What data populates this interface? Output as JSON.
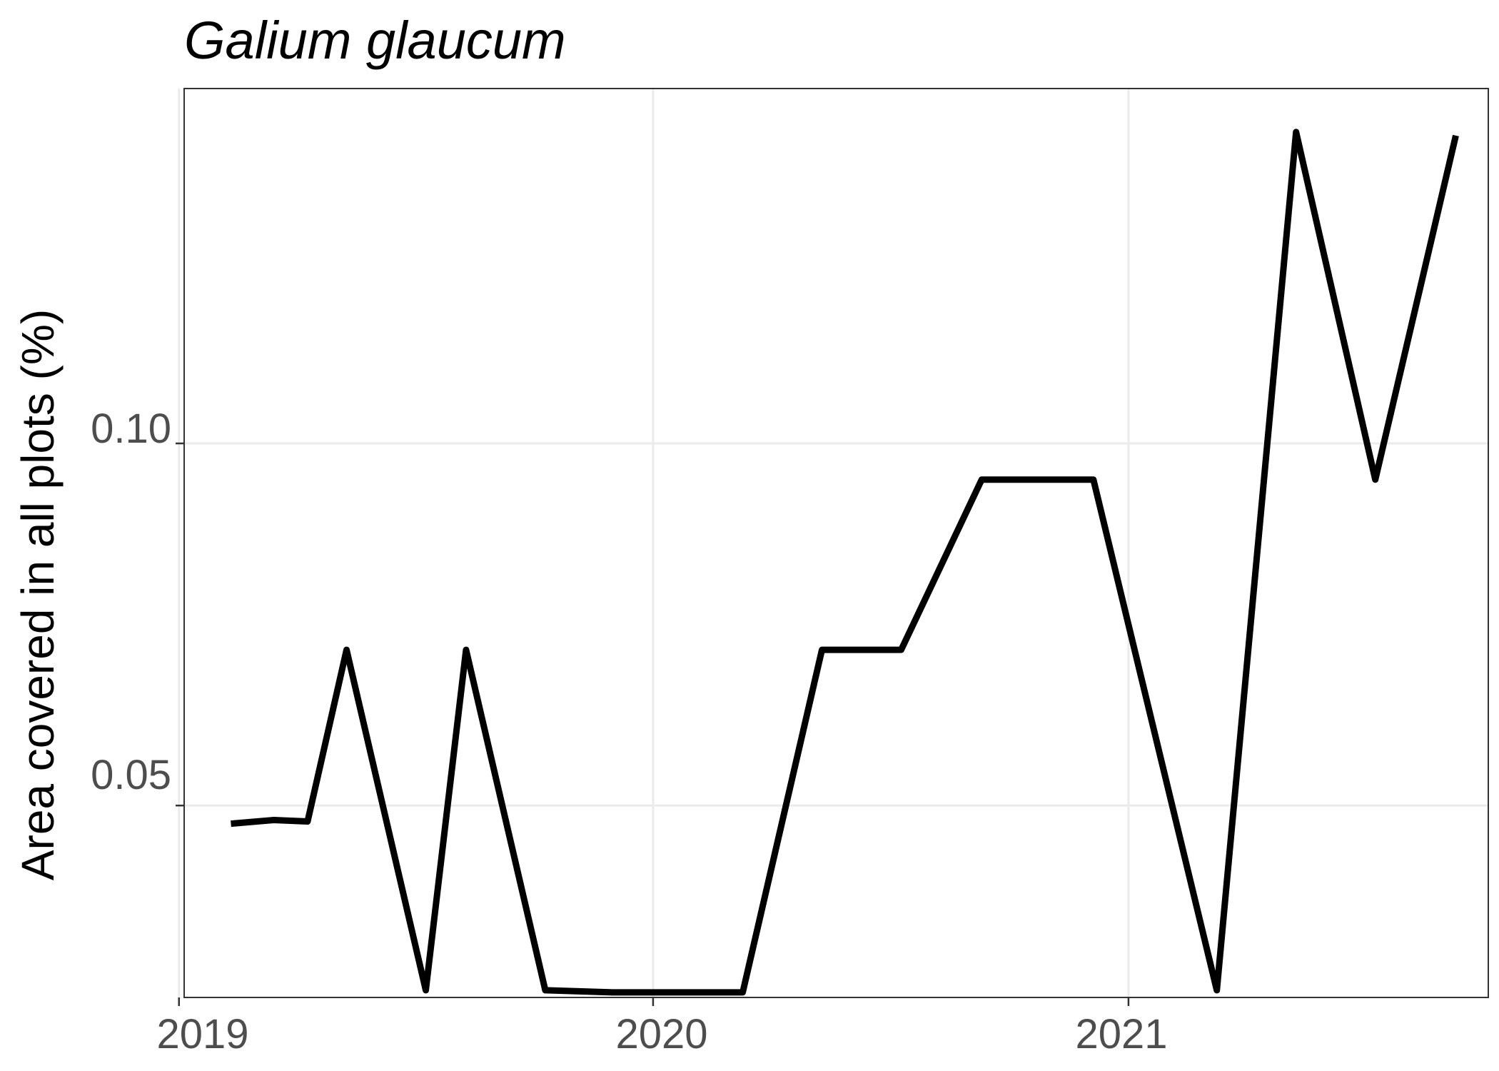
{
  "chart_data": {
    "type": "line",
    "title": "Galium glaucum",
    "xlabel": "",
    "ylabel": "Area covered in all plots (%)",
    "x_ticks": [
      "2019",
      "2020",
      "2021"
    ],
    "y_ticks": [
      "0.05",
      "0.10"
    ],
    "xlim": [
      "2019-01-05",
      "2021-10-05"
    ],
    "ylim": [
      0.0235,
      0.149
    ],
    "grid": true,
    "legend": "none",
    "series": [
      {
        "color": "#000000",
        "points": [
          {
            "x": "2019-02-10",
            "y": 0.0475
          },
          {
            "x": "2019-03-15",
            "y": 0.048
          },
          {
            "x": "2019-04-10",
            "y": 0.0478
          },
          {
            "x": "2019-05-10",
            "y": 0.0715
          },
          {
            "x": "2019-07-10",
            "y": 0.0245
          },
          {
            "x": "2019-08-10",
            "y": 0.0715
          },
          {
            "x": "2019-10-10",
            "y": 0.0245
          },
          {
            "x": "2019-12-01",
            "y": 0.0242
          },
          {
            "x": "2020-03-10",
            "y": 0.0242
          },
          {
            "x": "2020-05-10",
            "y": 0.0715
          },
          {
            "x": "2020-07-10",
            "y": 0.0715
          },
          {
            "x": "2020-09-10",
            "y": 0.095
          },
          {
            "x": "2020-12-05",
            "y": 0.095
          },
          {
            "x": "2021-03-10",
            "y": 0.0245
          },
          {
            "x": "2021-05-10",
            "y": 0.143
          },
          {
            "x": "2021-07-10",
            "y": 0.095
          },
          {
            "x": "2021-09-10",
            "y": 0.1425
          }
        ]
      }
    ]
  }
}
